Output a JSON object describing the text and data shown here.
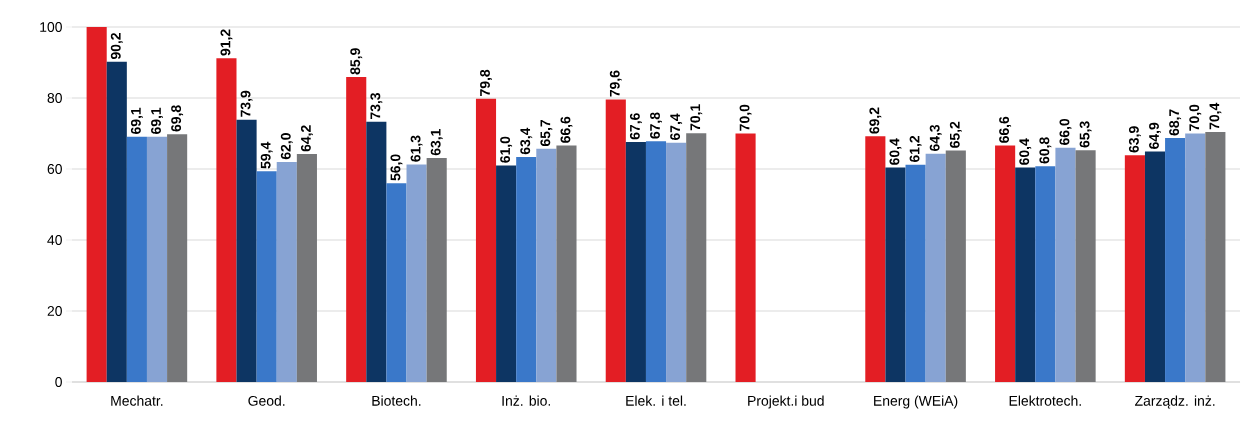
{
  "chart_data": {
    "type": "bar",
    "categories": [
      "Mechatr.",
      "Geod.",
      "Biotech.",
      "Inż. bio.",
      "Elek. i tel.",
      "Projekt.i bud",
      "Energ (WEiA)",
      "Elektrotech.",
      "Zarządz. inż."
    ],
    "series": [
      {
        "color": "#e31e24",
        "values": [
          100,
          91.2,
          85.9,
          79.8,
          79.6,
          70.0,
          69.2,
          66.6,
          63.9
        ],
        "value_labels": [
          null,
          "91,2",
          "85,9",
          "79,8",
          "79,6",
          "70,0",
          "69,2",
          "66,6",
          "63,9"
        ]
      },
      {
        "color": "#0d3563",
        "values": [
          90.2,
          73.9,
          73.3,
          61.0,
          67.6,
          null,
          60.4,
          60.4,
          64.9
        ],
        "value_labels": [
          "90,2",
          "73,9",
          "73,3",
          "61,0",
          "67,6",
          null,
          "60,4",
          "60,4",
          "64,9"
        ]
      },
      {
        "color": "#3a78c9",
        "values": [
          69.1,
          59.4,
          56.0,
          63.4,
          67.8,
          null,
          61.2,
          60.8,
          68.7
        ],
        "value_labels": [
          "69,1",
          "59,4",
          "56,0",
          "63,4",
          "67,8",
          null,
          "61,2",
          "60,8",
          "68,7"
        ]
      },
      {
        "color": "#87a3d3",
        "values": [
          69.1,
          62.0,
          61.3,
          65.7,
          67.4,
          null,
          64.3,
          66.0,
          70.0
        ],
        "value_labels": [
          "69,1",
          "62,0",
          "61,3",
          "65,7",
          "67,4",
          null,
          "64,3",
          "66,0",
          "70,0"
        ]
      },
      {
        "color": "#767779",
        "values": [
          69.8,
          64.2,
          63.1,
          66.6,
          70.1,
          null,
          65.2,
          65.3,
          70.4
        ],
        "value_labels": [
          "69,8",
          "64,2",
          "63,1",
          "66,6",
          "70,1",
          null,
          "65,2",
          "65,3",
          "70,4"
        ]
      }
    ],
    "ylim": [
      0,
      100
    ],
    "yticks": [
      0,
      20,
      40,
      60,
      80,
      100
    ],
    "grid": "y"
  }
}
